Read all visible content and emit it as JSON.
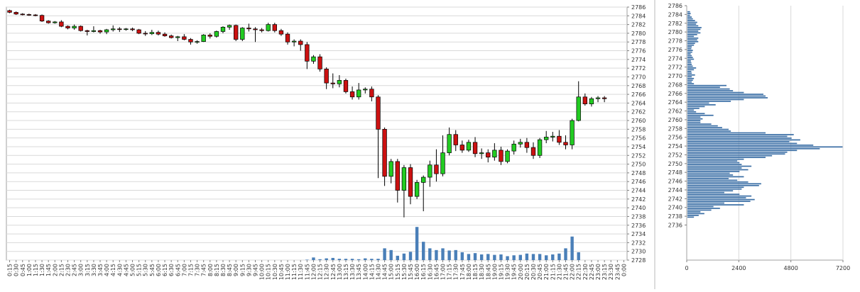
{
  "chart_data": [
    {
      "type": "candlestick",
      "title": "",
      "ylim": [
        2728,
        2786
      ],
      "y_ticks": [
        2728,
        2730,
        2732,
        2734,
        2736,
        2738,
        2740,
        2742,
        2744,
        2746,
        2748,
        2750,
        2752,
        2754,
        2756,
        2758,
        2760,
        2762,
        2764,
        2766,
        2768,
        2770,
        2772,
        2774,
        2776,
        2778,
        2780,
        2782,
        2784,
        2786
      ],
      "y_axis_side": "right",
      "grid": true,
      "x": [
        "0:15",
        "0:30",
        "0:45",
        "1:00",
        "1:15",
        "1:30",
        "1:45",
        "2:00",
        "2:15",
        "2:30",
        "2:45",
        "3:00",
        "3:15",
        "3:30",
        "3:45",
        "4:00",
        "4:15",
        "4:30",
        "4:45",
        "5:00",
        "5:15",
        "5:30",
        "5:45",
        "6:00",
        "6:15",
        "6:30",
        "6:45",
        "7:00",
        "7:15",
        "7:30",
        "7:45",
        "8:00",
        "8:15",
        "8:30",
        "8:45",
        "9:00",
        "9:15",
        "9:30",
        "9:45",
        "10:00",
        "10:15",
        "10:30",
        "10:45",
        "11:00",
        "11:15",
        "11:30",
        "11:45",
        "12:00",
        "12:15",
        "12:30",
        "12:45",
        "13:00",
        "13:15",
        "13:30",
        "13:45",
        "14:00",
        "14:15",
        "14:30",
        "14:45",
        "15:00",
        "15:15",
        "15:30",
        "15:45",
        "16:00",
        "16:15",
        "16:30",
        "16:45",
        "17:00",
        "17:15",
        "17:30",
        "17:45",
        "18:00",
        "18:15",
        "18:30",
        "18:45",
        "19:00",
        "19:15",
        "19:30",
        "19:45",
        "20:00",
        "20:15",
        "20:30",
        "20:45",
        "21:00",
        "21:15",
        "21:30",
        "21:45",
        "22:00",
        "22:15",
        "22:30",
        "22:45",
        "23:00",
        "23:15",
        "23:30",
        "23:45",
        "0:00"
      ],
      "ohlc": [
        [
          2785.2,
          2785.4,
          2784.6,
          2784.8
        ],
        [
          2784.8,
          2785.0,
          2784.2,
          2784.4
        ],
        [
          2784.4,
          2784.6,
          2784.1,
          2784.3
        ],
        [
          2784.3,
          2784.5,
          2784.0,
          2784.2
        ],
        [
          2784.2,
          2784.4,
          2783.9,
          2784.1
        ],
        [
          2784.1,
          2784.3,
          2782.6,
          2782.8
        ],
        [
          2782.8,
          2783.0,
          2782.2,
          2782.4
        ],
        [
          2782.4,
          2782.8,
          2782.2,
          2782.6
        ],
        [
          2782.6,
          2783.0,
          2781.4,
          2781.6
        ],
        [
          2781.6,
          2781.8,
          2780.9,
          2781.2
        ],
        [
          2781.2,
          2782.0,
          2780.8,
          2781.6
        ],
        [
          2781.6,
          2781.8,
          2780.4,
          2780.6
        ],
        [
          2780.6,
          2780.8,
          2779.5,
          2780.4
        ],
        [
          2780.4,
          2781.6,
          2780.2,
          2780.6
        ],
        [
          2780.6,
          2780.8,
          2779.9,
          2780.3
        ],
        [
          2780.3,
          2781.0,
          2779.8,
          2780.8
        ],
        [
          2780.8,
          2781.8,
          2780.4,
          2781.0
        ],
        [
          2781.0,
          2781.4,
          2780.3,
          2780.9
        ],
        [
          2780.9,
          2781.2,
          2780.6,
          2781.0
        ],
        [
          2781.0,
          2781.3,
          2780.5,
          2780.8
        ],
        [
          2780.8,
          2781.0,
          2779.8,
          2780.0
        ],
        [
          2780.0,
          2780.5,
          2779.4,
          2779.9
        ],
        [
          2779.9,
          2780.8,
          2779.6,
          2780.2
        ],
        [
          2780.2,
          2780.6,
          2779.5,
          2779.8
        ],
        [
          2779.8,
          2780.2,
          2779.2,
          2779.4
        ],
        [
          2779.4,
          2779.7,
          2778.8,
          2779.0
        ],
        [
          2779.0,
          2779.4,
          2778.2,
          2779.2
        ],
        [
          2779.2,
          2779.8,
          2778.4,
          2778.6
        ],
        [
          2778.6,
          2778.9,
          2777.4,
          2778.0
        ],
        [
          2778.0,
          2778.4,
          2777.6,
          2778.1
        ],
        [
          2778.1,
          2779.8,
          2778.0,
          2779.6
        ],
        [
          2779.6,
          2780.0,
          2778.8,
          2779.3
        ],
        [
          2779.3,
          2780.6,
          2779.0,
          2780.4
        ],
        [
          2780.4,
          2781.6,
          2780.0,
          2781.4
        ],
        [
          2781.4,
          2782.0,
          2780.8,
          2781.8
        ],
        [
          2781.8,
          2782.0,
          2778.2,
          2778.6
        ],
        [
          2778.6,
          2781.4,
          2778.2,
          2781.2
        ],
        [
          2781.2,
          2782.2,
          2780.4,
          2781.0
        ],
        [
          2781.0,
          2781.4,
          2778.0,
          2780.8
        ],
        [
          2780.8,
          2781.2,
          2780.2,
          2780.6
        ],
        [
          2780.6,
          2782.4,
          2780.4,
          2782.0
        ],
        [
          2782.0,
          2782.4,
          2780.2,
          2780.6
        ],
        [
          2780.6,
          2781.0,
          2779.4,
          2779.8
        ],
        [
          2779.8,
          2780.2,
          2777.4,
          2778.0
        ],
        [
          2778.0,
          2778.6,
          2777.0,
          2778.2
        ],
        [
          2778.2,
          2778.6,
          2776.0,
          2777.4
        ],
        [
          2777.4,
          2778.0,
          2771.8,
          2773.6
        ],
        [
          2773.6,
          2775.0,
          2773.0,
          2774.6
        ],
        [
          2774.6,
          2775.2,
          2771.2,
          2771.8
        ],
        [
          2771.8,
          2772.2,
          2767.2,
          2768.6
        ],
        [
          2768.6,
          2770.8,
          2767.4,
          2768.4
        ],
        [
          2768.4,
          2770.4,
          2767.6,
          2769.2
        ],
        [
          2769.2,
          2769.6,
          2766.2,
          2766.6
        ],
        [
          2766.6,
          2767.8,
          2764.8,
          2765.4
        ],
        [
          2765.4,
          2768.6,
          2764.8,
          2767.0
        ],
        [
          2767.0,
          2767.6,
          2766.2,
          2767.2
        ],
        [
          2767.2,
          2767.8,
          2764.4,
          2765.4
        ],
        [
          2765.4,
          2765.8,
          2746.8,
          2758.0
        ],
        [
          2758.0,
          2758.4,
          2745.0,
          2747.2
        ],
        [
          2747.2,
          2751.2,
          2745.6,
          2750.6
        ],
        [
          2750.6,
          2751.2,
          2741.2,
          2744.0
        ],
        [
          2744.0,
          2749.8,
          2737.8,
          2749.2
        ],
        [
          2749.2,
          2750.0,
          2740.8,
          2742.6
        ],
        [
          2742.6,
          2746.4,
          2742.0,
          2745.8
        ],
        [
          2745.8,
          2747.4,
          2739.2,
          2747.0
        ],
        [
          2747.0,
          2750.8,
          2744.8,
          2749.8
        ],
        [
          2749.8,
          2753.4,
          2746.0,
          2747.8
        ],
        [
          2747.8,
          2756.6,
          2747.2,
          2752.6
        ],
        [
          2752.6,
          2758.4,
          2752.0,
          2756.8
        ],
        [
          2756.8,
          2757.8,
          2753.0,
          2754.4
        ],
        [
          2754.4,
          2755.4,
          2752.6,
          2753.2
        ],
        [
          2753.2,
          2755.6,
          2752.8,
          2755.0
        ],
        [
          2755.0,
          2756.2,
          2751.6,
          2752.4
        ],
        [
          2752.4,
          2753.6,
          2751.2,
          2752.6
        ],
        [
          2752.6,
          2753.4,
          2750.4,
          2751.6
        ],
        [
          2751.6,
          2754.8,
          2750.8,
          2753.2
        ],
        [
          2753.2,
          2754.0,
          2749.8,
          2750.6
        ],
        [
          2750.6,
          2753.4,
          2750.2,
          2753.0
        ],
        [
          2753.0,
          2755.4,
          2752.2,
          2754.6
        ],
        [
          2754.6,
          2755.8,
          2753.8,
          2755.0
        ],
        [
          2755.0,
          2756.0,
          2752.6,
          2753.8
        ],
        [
          2753.8,
          2755.0,
          2751.2,
          2752.0
        ],
        [
          2752.0,
          2756.0,
          2751.4,
          2755.6
        ],
        [
          2755.6,
          2757.6,
          2754.8,
          2756.2
        ],
        [
          2756.2,
          2757.4,
          2755.2,
          2756.4
        ],
        [
          2756.4,
          2757.8,
          2754.4,
          2755.0
        ],
        [
          2755.0,
          2756.6,
          2753.4,
          2754.4
        ],
        [
          2754.4,
          2760.4,
          2753.4,
          2760.0
        ],
        [
          2760.0,
          2769.0,
          2759.8,
          2765.4
        ],
        [
          2765.4,
          2766.2,
          2763.4,
          2763.8
        ],
        [
          2763.8,
          2765.4,
          2763.2,
          2765.0
        ],
        [
          2765.0,
          2765.6,
          2764.2,
          2765.2
        ],
        [
          2765.2,
          2765.6,
          2764.2,
          2765.0
        ]
      ],
      "volume": [
        0,
        0,
        0,
        0,
        0,
        0,
        0,
        0,
        0,
        0,
        0,
        0,
        0,
        0,
        0,
        0,
        0,
        0,
        0,
        0,
        0,
        0,
        0,
        0,
        0,
        0,
        0,
        0,
        0,
        0,
        0,
        0,
        0,
        0,
        0,
        0,
        0,
        0,
        0,
        0,
        0,
        0,
        0,
        0,
        0,
        0,
        0.1,
        0.6,
        0.2,
        0.4,
        0.5,
        0.3,
        0.3,
        0.3,
        0.2,
        0.4,
        0.3,
        0.3,
        2.7,
        2.3,
        1.0,
        1.5,
        1.9,
        7.6,
        4.2,
        2.7,
        2.3,
        2.7,
        2.2,
        2.3,
        1.8,
        1.4,
        1.6,
        1.3,
        1.4,
        1.2,
        1.3,
        0.9,
        1.1,
        1.2,
        1.5,
        1.4,
        1.4,
        1.1,
        1.3,
        1.5,
        2.7,
        5.4,
        1.8,
        0,
        0,
        0,
        0,
        0,
        0,
        0
      ],
      "volume_unit_scale": "same axis as price, baseline 2728"
    },
    {
      "type": "bar",
      "orientation": "horizontal",
      "title": "",
      "xlim": [
        0,
        7200
      ],
      "x_ticks": [
        0,
        2400,
        4800,
        7200
      ],
      "ylim": [
        2736,
        2786
      ],
      "y_ticks": [
        2736,
        2738,
        2740,
        2742,
        2744,
        2746,
        2748,
        2750,
        2752,
        2754,
        2756,
        2758,
        2760,
        2762,
        2764,
        2766,
        2768,
        2770,
        2772,
        2774,
        2776,
        2778,
        2780,
        2782,
        2784,
        2786
      ],
      "y_axis_side": "left",
      "grid": true,
      "levels": [
        2737.8,
        2738.2,
        2738.6,
        2739.0,
        2739.4,
        2739.8,
        2740.2,
        2740.6,
        2741.0,
        2741.4,
        2741.8,
        2742.2,
        2742.6,
        2743.0,
        2743.4,
        2743.8,
        2744.2,
        2744.6,
        2745.0,
        2745.4,
        2745.8,
        2746.2,
        2746.6,
        2747.0,
        2747.4,
        2747.8,
        2748.2,
        2748.6,
        2749.0,
        2749.4,
        2749.8,
        2750.2,
        2750.6,
        2751.0,
        2751.4,
        2751.8,
        2752.2,
        2752.6,
        2753.0,
        2753.4,
        2753.8,
        2754.2,
        2754.6,
        2755.0,
        2755.4,
        2755.8,
        2756.2,
        2756.6,
        2757.0,
        2757.4,
        2757.8,
        2758.2,
        2758.6,
        2759.0,
        2759.4,
        2759.8,
        2760.2,
        2760.6,
        2761.0,
        2761.4,
        2761.8,
        2762.2,
        2762.6,
        2763.0,
        2763.4,
        2763.8,
        2764.2,
        2764.6,
        2765.0,
        2765.4,
        2765.8,
        2766.2,
        2766.6,
        2767.0,
        2767.4,
        2767.8,
        2768.2,
        2768.6,
        2769.0,
        2769.4,
        2769.8,
        2770.2,
        2770.6,
        2771.0,
        2771.4,
        2771.8,
        2772.2,
        2772.6,
        2773.0,
        2773.4,
        2773.8,
        2774.2,
        2774.6,
        2775.0,
        2775.4,
        2775.8,
        2776.2,
        2776.6,
        2777.0,
        2777.4,
        2777.8,
        2778.2,
        2778.6,
        2779.0,
        2779.4,
        2779.8,
        2780.2,
        2780.6,
        2781.0,
        2781.4,
        2781.8,
        2782.2,
        2782.6,
        2783.0,
        2783.4,
        2783.8,
        2784.2,
        2784.6
      ],
      "values": [
        300,
        520,
        780,
        600,
        1100,
        1500,
        1200,
        2600,
        1700,
        2900,
        3100,
        2700,
        2950,
        2400,
        1700,
        2100,
        2500,
        2600,
        3300,
        3400,
        2800,
        2300,
        1900,
        2600,
        2100,
        1950,
        2400,
        2800,
        2500,
        2950,
        2500,
        2400,
        2300,
        2600,
        3600,
        3900,
        4500,
        4600,
        5050,
        6100,
        7150,
        5800,
        5050,
        4700,
        5200,
        4800,
        4600,
        4900,
        3600,
        2000,
        1900,
        1600,
        1400,
        1100,
        600,
        600,
        700,
        600,
        1200,
        800,
        400,
        300,
        550,
        800,
        1300,
        1000,
        2000,
        2600,
        3700,
        3600,
        3500,
        2600,
        2100,
        1950,
        1500,
        1800,
        300,
        200,
        250,
        300,
        200,
        350,
        200,
        180,
        300,
        400,
        250,
        200,
        180,
        160,
        300,
        250,
        200,
        150,
        220,
        250,
        180,
        200,
        300,
        350,
        500,
        450,
        500,
        300,
        450,
        600,
        500,
        600,
        650,
        500,
        400,
        450,
        350,
        250,
        200,
        120,
        150,
        120
      ]
    }
  ]
}
